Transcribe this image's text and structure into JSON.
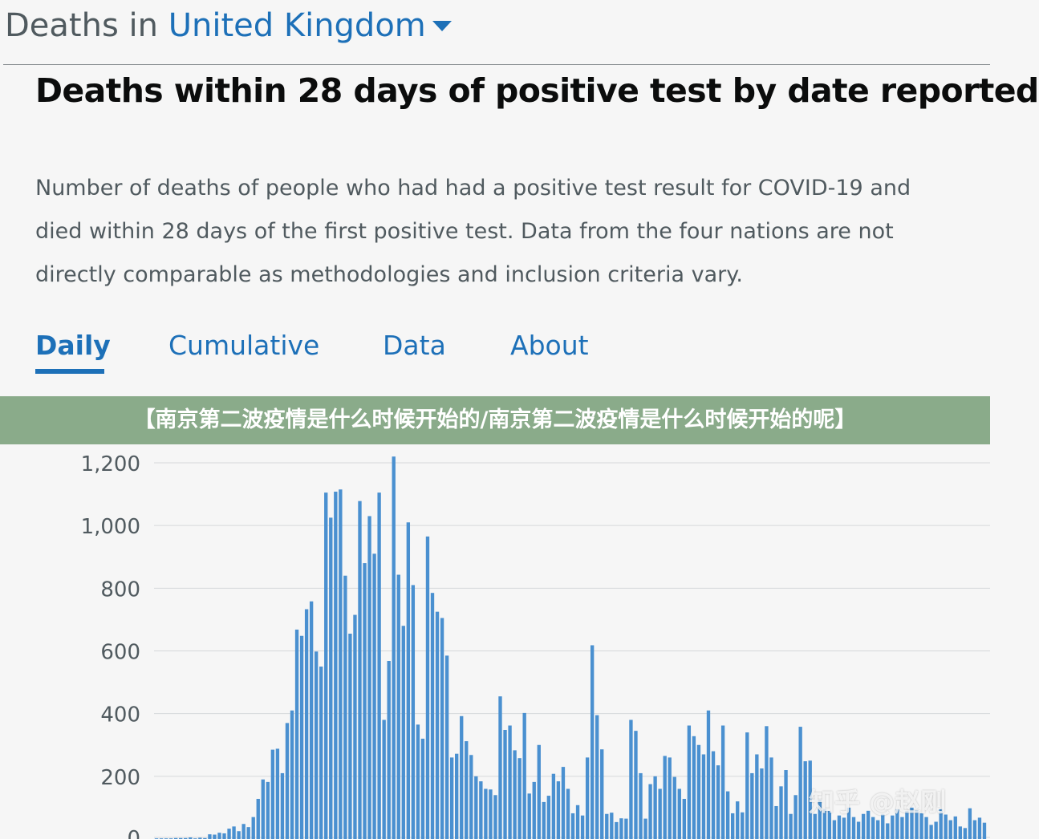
{
  "header": {
    "prefix": "Deaths in ",
    "area": "United Kingdom"
  },
  "card": {
    "title": "Deaths within 28 days of positive test by date reported",
    "description": "Number of deaths of people who had had a positive test result for COVID-19 and died within 28 days of the first positive test. Data from the four nations are not directly comparable as methodologies and inclusion criteria vary."
  },
  "tabs": [
    {
      "label": "Daily",
      "active": true
    },
    {
      "label": "Cumulative",
      "active": false
    },
    {
      "label": "Data",
      "active": false
    },
    {
      "label": "About",
      "active": false
    }
  ],
  "banner": {
    "text": "【南京第二波疫情是什么时候开始的/南京第二波疫情是什么时候开始的呢】"
  },
  "watermark": "知乎 @赵刚",
  "colors": {
    "link_blue": "#1d70b8",
    "bar_blue": "#4a90d0",
    "banner_green": "#8aab8a"
  },
  "chart_data": {
    "type": "bar",
    "ylim": [
      0,
      1200
    ],
    "yticks": [
      0,
      200,
      400,
      600,
      800,
      1000,
      1200
    ],
    "ytick_labels": [
      "0",
      "200",
      "400",
      "600",
      "800",
      "1,000",
      "1,200"
    ],
    "grid": true,
    "series": [
      {
        "values": [
          2,
          2,
          2,
          2,
          3,
          3,
          3,
          5,
          2,
          4,
          3,
          15,
          14,
          20,
          18,
          33,
          40,
          25,
          48,
          38,
          70,
          128,
          190,
          182,
          285,
          288,
          210,
          370,
          410,
          668,
          648,
          733,
          758,
          598,
          550,
          1105,
          1025,
          1108,
          1115,
          840,
          655,
          715,
          1078,
          880,
          1030,
          910,
          1105,
          380,
          568,
          1220,
          843,
          680,
          1010,
          810,
          365,
          320,
          965,
          785,
          725,
          705,
          585,
          260,
          272,
          392,
          312,
          268,
          200,
          184,
          160,
          158,
          140,
          455,
          348,
          362,
          283,
          258,
          402,
          145,
          182,
          300,
          118,
          138,
          208,
          184,
          230,
          160,
          82,
          108,
          75,
          260,
          618,
          395,
          286,
          80,
          84,
          54,
          66,
          65,
          380,
          345,
          210,
          65,
          175,
          200,
          160,
          265,
          260,
          198,
          160,
          128,
          362,
          328,
          300,
          270,
          410,
          280,
          235,
          362,
          152,
          82,
          120,
          85,
          340,
          210,
          270,
          225,
          360,
          260,
          105,
          168,
          220,
          80,
          140,
          358,
          248,
          250,
          80,
          125,
          96,
          90,
          60,
          75,
          68,
          100,
          70,
          55,
          80,
          90,
          70,
          60,
          80,
          50,
          75,
          95,
          70,
          90,
          100,
          92,
          82,
          70,
          45,
          55,
          95,
          78,
          60,
          72,
          40,
          35,
          98,
          60,
          68,
          52
        ]
      }
    ]
  }
}
